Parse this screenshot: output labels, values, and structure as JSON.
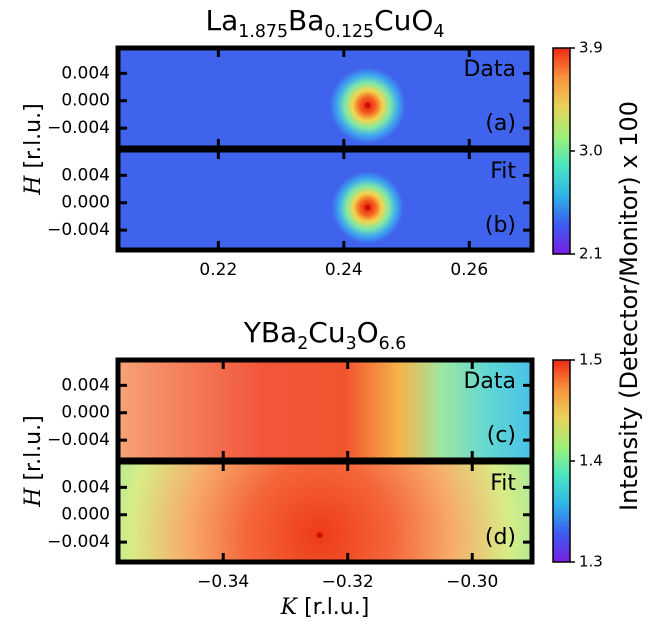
{
  "chart_data": [
    {
      "type": "heatmap",
      "colormap": "rainbow",
      "title": [
        {
          "text": "La"
        },
        {
          "text": "1.875",
          "sub": true
        },
        {
          "text": "Ba"
        },
        {
          "text": "0.125",
          "sub": true
        },
        {
          "text": "CuO"
        },
        {
          "text": "4",
          "sub": true
        }
      ],
      "ylabel": [
        {
          "text": "H",
          "italic": true
        },
        {
          "text": " [r.l.u.]"
        }
      ],
      "xlim": [
        0.204,
        0.27
      ],
      "xticks": [
        0.22,
        0.24,
        0.26
      ],
      "ylim": [
        -0.0069,
        0.0077
      ],
      "yticks": [
        0.004,
        {
          "value": 0,
          "label": "0.000"
        },
        {
          "value": -0.004,
          "label": "−0.004"
        }
      ],
      "clim": [
        2.1,
        3.9
      ],
      "cticks": [
        2.1,
        {
          "value": 3,
          "label": "3.0"
        },
        3.9
      ],
      "panels": [
        {
          "name": "Data",
          "tag": "(a)",
          "peak": {
            "K": 0.2438,
            "H": -0.0007
          }
        },
        {
          "name": "Fit",
          "tag": "(b)",
          "peak": {
            "K": 0.2438,
            "H": -0.0007
          }
        }
      ]
    },
    {
      "type": "heatmap",
      "colormap": "rainbow",
      "title": [
        {
          "text": "YBa"
        },
        {
          "text": "2",
          "sub": true
        },
        {
          "text": "Cu"
        },
        {
          "text": "3",
          "sub": true
        },
        {
          "text": "O"
        },
        {
          "text": "6.6",
          "sub": true
        }
      ],
      "ylabel": [
        {
          "text": "H",
          "italic": true
        },
        {
          "text": " [r.l.u.]"
        }
      ],
      "xlabel": [
        {
          "text": "K",
          "italic": true
        },
        {
          "text": " [r.l.u.]"
        }
      ],
      "colorbar_label": "Intensity (Detector/Monitor) x 100",
      "xlim": [
        -0.3569,
        -0.2904
      ],
      "xticks": [
        {
          "value": -0.34,
          "label": "−0.34"
        },
        {
          "value": -0.32,
          "label": "−0.32"
        },
        {
          "value": -0.3,
          "label": "−0.30"
        }
      ],
      "ylim": [
        -0.0069,
        0.0077
      ],
      "yticks": [
        0.004,
        {
          "value": 0,
          "label": "0.000"
        },
        {
          "value": -0.004,
          "label": "−0.004"
        }
      ],
      "clim": [
        1.3,
        1.5
      ],
      "cticks": [
        1.3,
        1.4,
        1.5
      ],
      "panels": [
        {
          "name": "Data",
          "tag": "(c)"
        },
        {
          "name": "Fit",
          "tag": "(d)",
          "peak": {
            "K": -0.3245,
            "H": -0.003
          }
        }
      ]
    }
  ]
}
